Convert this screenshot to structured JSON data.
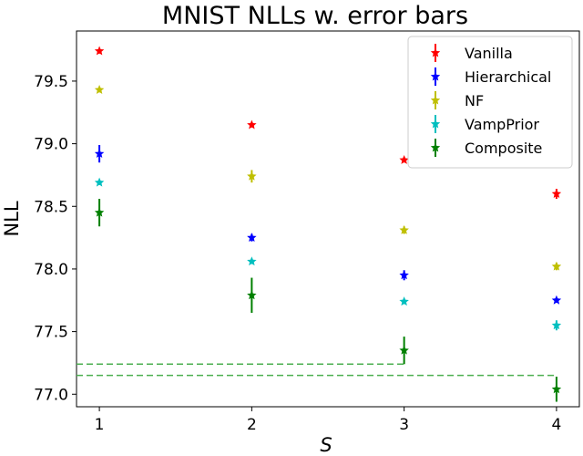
{
  "chart_data": {
    "type": "scatter",
    "title": "MNIST NLLs w. error bars",
    "xlabel": "S",
    "ylabel": "NLL",
    "x": [
      1,
      2,
      3,
      4
    ],
    "xlim": [
      0.85,
      4.15
    ],
    "ylim": [
      76.9,
      79.9
    ],
    "x_ticks": [
      "1",
      "2",
      "3",
      "4"
    ],
    "y_ticks": [
      "77.0",
      "77.5",
      "78.0",
      "78.5",
      "79.0",
      "79.5"
    ],
    "grid": false,
    "legend_position": "top-right",
    "series": [
      {
        "name": "Vanilla",
        "color": "#ff0000",
        "y": [
          79.74,
          79.15,
          78.87,
          78.6
        ],
        "err": [
          0.02,
          0.02,
          0.02,
          0.04
        ]
      },
      {
        "name": "Hierarchical",
        "color": "#0000ff",
        "y": [
          78.92,
          78.25,
          77.95,
          77.75
        ],
        "err": [
          0.07,
          0.03,
          0.04,
          0.02
        ]
      },
      {
        "name": "NF",
        "color": "#bfbf00",
        "y": [
          79.43,
          78.74,
          78.31,
          78.02
        ],
        "err": [
          0.02,
          0.05,
          0.03,
          0.03
        ]
      },
      {
        "name": "VampPrior",
        "color": "#00bfbf",
        "y": [
          78.69,
          78.06,
          77.74,
          77.55
        ],
        "err": [
          0.02,
          0.02,
          0.02,
          0.04
        ]
      },
      {
        "name": "Composite",
        "color": "#008000",
        "y": [
          78.45,
          77.79,
          77.35,
          77.04
        ],
        "err": [
          0.11,
          0.14,
          0.11,
          0.1
        ]
      }
    ],
    "reference_lines": [
      {
        "y": 77.24,
        "x_from": 0.85,
        "x_to": 3.0,
        "color": "#4caf50",
        "style": "dashed"
      },
      {
        "y": 77.15,
        "x_from": 0.85,
        "x_to": 4.0,
        "color": "#4caf50",
        "style": "dashed"
      }
    ]
  }
}
